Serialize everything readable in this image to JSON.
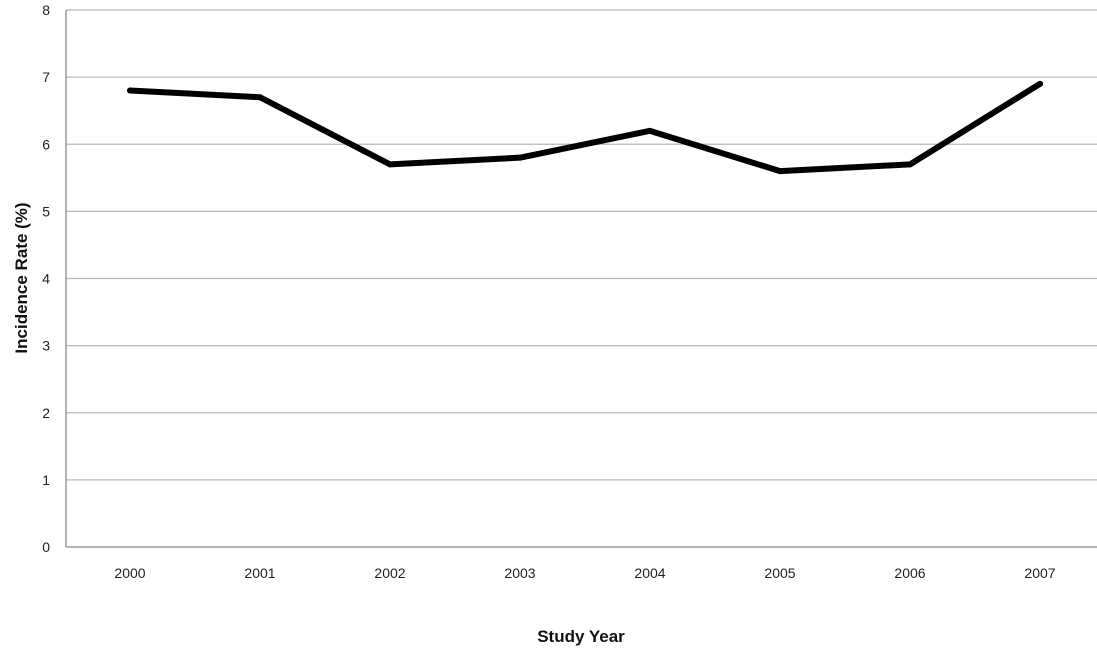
{
  "chart_data": {
    "type": "line",
    "title": "",
    "xlabel": "Study Year",
    "ylabel": "Incidence Rate (%)",
    "categories": [
      "2000",
      "2001",
      "2002",
      "2003",
      "2004",
      "2005",
      "2006",
      "2007"
    ],
    "series": [
      {
        "values": [
          6.8,
          6.7,
          5.7,
          5.8,
          6.2,
          5.6,
          5.7,
          6.9
        ]
      }
    ],
    "ylim": [
      0,
      8
    ],
    "yticks": [
      0,
      1,
      2,
      3,
      4,
      5,
      6,
      7,
      8
    ],
    "grid": true,
    "legend": "none",
    "line_color": "#000000",
    "grid_color": "#b8b8b8"
  }
}
